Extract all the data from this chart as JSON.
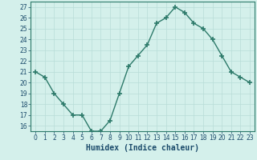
{
  "x": [
    0,
    1,
    2,
    3,
    4,
    5,
    6,
    7,
    8,
    9,
    10,
    11,
    12,
    13,
    14,
    15,
    16,
    17,
    18,
    19,
    20,
    21,
    22,
    23
  ],
  "y": [
    21,
    20.5,
    19,
    18,
    17,
    17,
    15.5,
    15.5,
    16.5,
    19,
    21.5,
    22.5,
    23.5,
    25.5,
    26,
    27,
    26.5,
    25.5,
    25,
    24,
    22.5,
    21,
    20.5,
    20
  ],
  "line_color": "#2d7a6a",
  "marker": "+",
  "marker_size": 4,
  "bg_color": "#d4f0eb",
  "grid_color": "#b8ddd8",
  "xlabel": "Humidex (Indice chaleur)",
  "xlim": [
    -0.5,
    23.5
  ],
  "ylim": [
    15.5,
    27.5
  ],
  "yticks": [
    16,
    17,
    18,
    19,
    20,
    21,
    22,
    23,
    24,
    25,
    26,
    27
  ],
  "xticks": [
    0,
    1,
    2,
    3,
    4,
    5,
    6,
    7,
    8,
    9,
    10,
    11,
    12,
    13,
    14,
    15,
    16,
    17,
    18,
    19,
    20,
    21,
    22,
    23
  ],
  "xlabel_color": "#1a4a6a",
  "tick_color": "#1a4a6a",
  "axis_color": "#2d7a6a",
  "xlabel_fontsize": 7,
  "tick_fontsize": 5.5,
  "linewidth": 1.0,
  "marker_thickness": 1.2
}
